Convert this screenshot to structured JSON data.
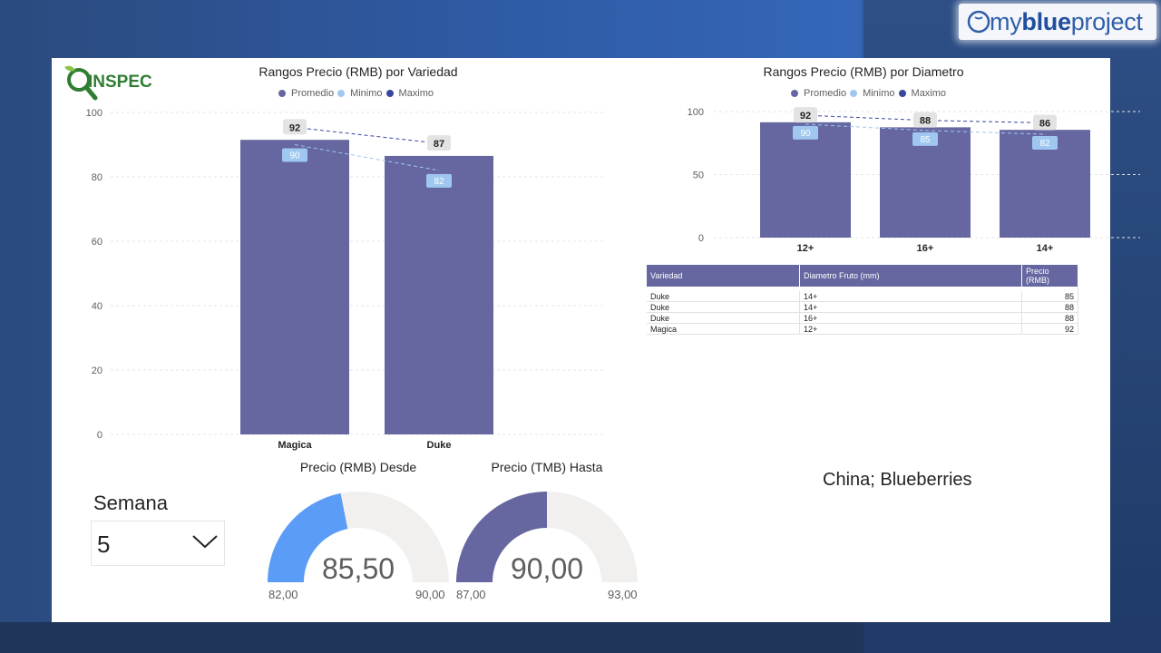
{
  "brand": {
    "prefix": "my",
    "bold": "blue",
    "suffix": "project"
  },
  "logo": {
    "text": "INSPEC"
  },
  "chart_data": [
    {
      "type": "bar",
      "title": "Rangos Precio (RMB) por Variedad",
      "legend": [
        "Promedio",
        "Minimo",
        "Maximo"
      ],
      "legend_position": "top-center",
      "categories": [
        "Magica",
        "Duke"
      ],
      "series": [
        {
          "name": "Promedio",
          "values": [
            91.5,
            86.5
          ]
        },
        {
          "name": "Minimo",
          "values": [
            90,
            82
          ]
        },
        {
          "name": "Maximo",
          "values": [
            92,
            87
          ]
        }
      ],
      "ylim": [
        0,
        100
      ],
      "yticks": [
        0,
        20,
        40,
        60,
        80,
        100
      ],
      "grid": true
    },
    {
      "type": "bar",
      "title": "Rangos Precio (RMB) por Diametro",
      "legend": [
        "Promedio",
        "Minimo",
        "Maximo"
      ],
      "legend_position": "top-center",
      "categories": [
        "12+",
        "16+",
        "14+"
      ],
      "series": [
        {
          "name": "Promedio",
          "values": [
            91.5,
            87.5,
            85.5
          ]
        },
        {
          "name": "Minimo",
          "values": [
            90,
            85,
            82
          ]
        },
        {
          "name": "Maximo",
          "values": [
            92,
            88,
            86
          ]
        }
      ],
      "ylim": [
        0,
        100
      ],
      "yticks": [
        0,
        50,
        100
      ],
      "grid": true
    }
  ],
  "colors": {
    "promedio": "#6667a0",
    "minimo": "#9fc7ef",
    "maximo": "#3a469d",
    "min_label_bg": "#9fc7ef",
    "gauge_desde": "#5b9cf7",
    "gauge_hasta": "#6667a0",
    "gauge_track": "#f1f0ef"
  },
  "table": {
    "headers": [
      "Variedad",
      "Diametro Fruto (mm)",
      "Precio (RMB)"
    ],
    "rows": [
      [
        "Duke",
        "14+",
        "85"
      ],
      [
        "Duke",
        "14+",
        "88"
      ],
      [
        "Duke",
        "16+",
        "88"
      ],
      [
        "Magica",
        "12+",
        "92"
      ]
    ]
  },
  "semana": {
    "label": "Semana",
    "value": "5"
  },
  "gauges": [
    {
      "title": "Precio (RMB) Desde",
      "value": 85.5,
      "value_label": "85,50",
      "min": 82,
      "max": 90,
      "min_label": "82,00",
      "max_label": "90,00"
    },
    {
      "title": "Precio (TMB) Hasta",
      "value": 90,
      "value_label": "90,00",
      "min": 87,
      "max": 93,
      "min_label": "87,00",
      "max_label": "93,00"
    }
  ],
  "caption": "China; Blueberries"
}
